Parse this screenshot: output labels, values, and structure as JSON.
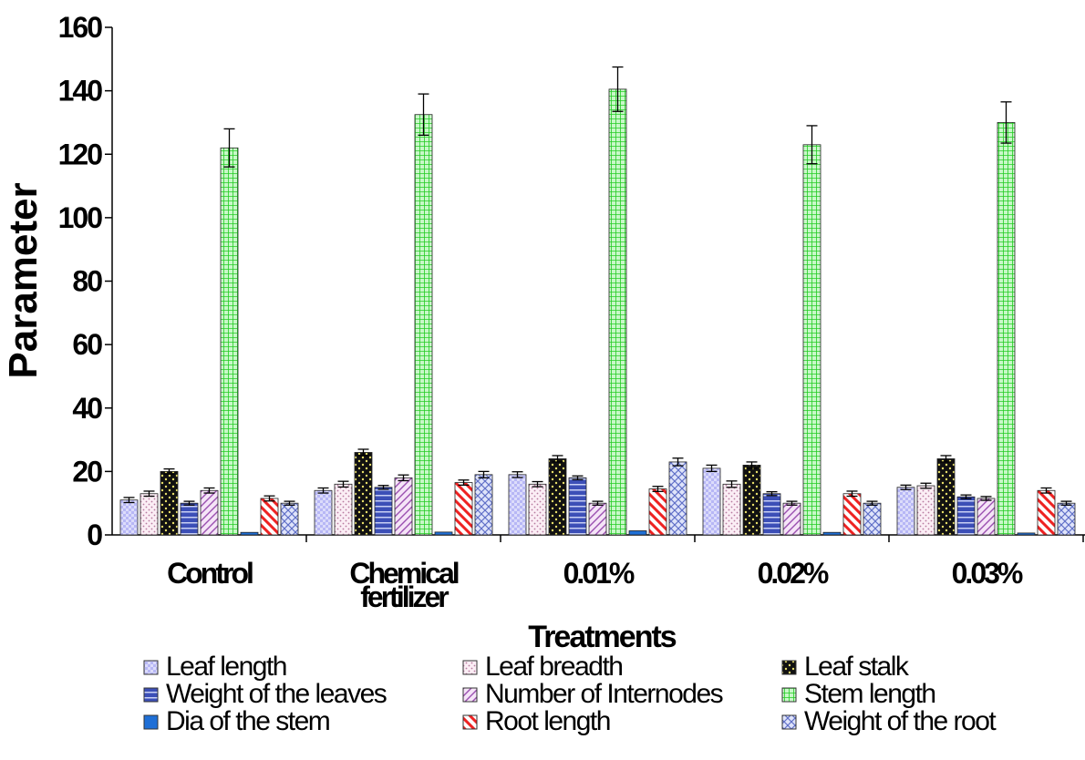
{
  "chart_data": {
    "type": "bar",
    "xlabel": "Treatments",
    "ylabel": "Parameter",
    "ylim": [
      0,
      160
    ],
    "yticks": [
      0,
      20,
      40,
      60,
      80,
      100,
      120,
      140,
      160
    ],
    "grid": false,
    "legend_position": "bottom",
    "categories": [
      "Control",
      "Chemical fertilizer",
      "0.01%",
      "0.02%",
      "0.03%"
    ],
    "series": [
      {
        "name": "Leaf length",
        "color": "#b7b7f5",
        "values": [
          11,
          14,
          19,
          21,
          15
        ],
        "errors": [
          0.8,
          0.8,
          0.9,
          1.0,
          0.7
        ]
      },
      {
        "name": "Leaf breadth",
        "color": "#f7e1ee",
        "values": [
          13,
          16,
          16,
          16,
          15.5
        ],
        "errors": [
          0.8,
          0.9,
          0.8,
          1.0,
          0.8
        ]
      },
      {
        "name": "Leaf stalk",
        "color": "#111111",
        "values": [
          20,
          26,
          24,
          22,
          24
        ],
        "errors": [
          0.8,
          1.0,
          1.0,
          1.0,
          1.0
        ]
      },
      {
        "name": "Weight of the leaves",
        "color": "#3c4fb7",
        "values": [
          10,
          15,
          18,
          13,
          12
        ],
        "errors": [
          0.6,
          0.6,
          0.6,
          0.6,
          0.6
        ]
      },
      {
        "name": "Number of Internodes",
        "color": "#e9c8ee",
        "values": [
          14,
          18,
          10,
          10,
          11.5
        ],
        "errors": [
          0.8,
          0.9,
          0.6,
          0.6,
          0.6
        ]
      },
      {
        "name": "Stem length",
        "color": "#33ee33",
        "values": [
          122,
          132.5,
          140.5,
          123,
          130
        ],
        "errors": [
          6,
          6.5,
          7,
          6,
          6.5
        ]
      },
      {
        "name": "Dia of the stem",
        "color": "#1f6fd6",
        "values": [
          0.8,
          0.9,
          1.3,
          0.8,
          0.6
        ],
        "errors": [
          0,
          0,
          0,
          0,
          0
        ]
      },
      {
        "name": "Root length",
        "color": "#ee2222",
        "values": [
          11.5,
          16.5,
          14.5,
          13,
          14
        ],
        "errors": [
          0.8,
          0.8,
          0.8,
          0.8,
          0.8
        ]
      },
      {
        "name": "Weight of the root",
        "color": "#9aa7e6",
        "values": [
          10,
          19,
          23,
          10,
          10
        ],
        "errors": [
          0.6,
          1.0,
          1.2,
          0.6,
          0.6
        ]
      }
    ]
  }
}
